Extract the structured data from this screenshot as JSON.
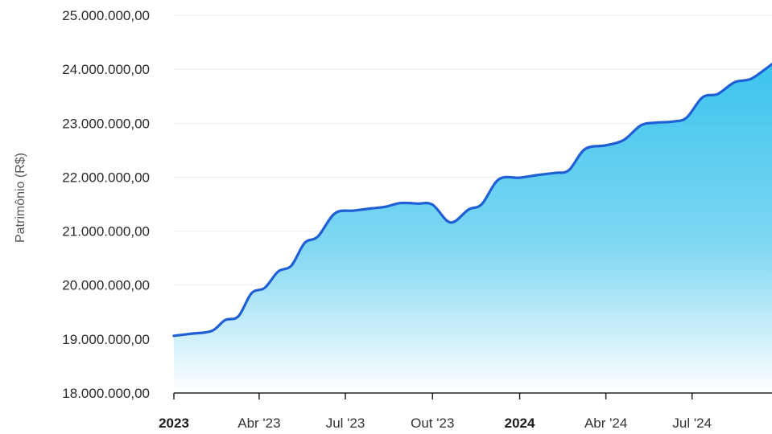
{
  "chart_data": {
    "type": "area",
    "title": "",
    "xlabel": "",
    "ylabel": "Patrimônio (R$)",
    "ylim": [
      18000000,
      25000000
    ],
    "y_ticks": [
      {
        "value": 18000000,
        "label": "18.000.000,00"
      },
      {
        "value": 19000000,
        "label": "19.000.000,00"
      },
      {
        "value": 20000000,
        "label": "20.000.000,00"
      },
      {
        "value": 21000000,
        "label": "21.000.000,00"
      },
      {
        "value": 22000000,
        "label": "22.000.000,00"
      },
      {
        "value": 23000000,
        "label": "23.000.000,00"
      },
      {
        "value": 24000000,
        "label": "24.000.000,00"
      },
      {
        "value": 25000000,
        "label": "25.000.000,00"
      }
    ],
    "xlim": [
      "2023-01-01",
      "2024-10-01"
    ],
    "x_ticks": [
      {
        "date": "2023-01-01",
        "label": "2023",
        "bold": true
      },
      {
        "date": "2023-04-01",
        "label": "Abr '23",
        "bold": false
      },
      {
        "date": "2023-07-01",
        "label": "Jul '23",
        "bold": false
      },
      {
        "date": "2023-10-01",
        "label": "Out '23",
        "bold": false
      },
      {
        "date": "2024-01-01",
        "label": "2024",
        "bold": true
      },
      {
        "date": "2024-04-01",
        "label": "Abr '24",
        "bold": false
      },
      {
        "date": "2024-07-01",
        "label": "Jul '24",
        "bold": false
      },
      {
        "date": "2024-10-01",
        "label": "",
        "bold": false
      }
    ],
    "grid": true,
    "series": [
      {
        "color": "#1f5fd6",
        "fill_top": "#3cc4ee",
        "fill_bottom": "#ffffff",
        "points": [
          {
            "x": "2023-01-01",
            "y": 19060000
          },
          {
            "x": "2023-01-20",
            "y": 19100000
          },
          {
            "x": "2023-02-10",
            "y": 19150000
          },
          {
            "x": "2023-02-24",
            "y": 19350000
          },
          {
            "x": "2023-03-10",
            "y": 19420000
          },
          {
            "x": "2023-03-24",
            "y": 19850000
          },
          {
            "x": "2023-04-07",
            "y": 19950000
          },
          {
            "x": "2023-04-21",
            "y": 20250000
          },
          {
            "x": "2023-05-05",
            "y": 20360000
          },
          {
            "x": "2023-05-19",
            "y": 20780000
          },
          {
            "x": "2023-06-02",
            "y": 20900000
          },
          {
            "x": "2023-06-20",
            "y": 21330000
          },
          {
            "x": "2023-07-10",
            "y": 21380000
          },
          {
            "x": "2023-07-28",
            "y": 21420000
          },
          {
            "x": "2023-08-12",
            "y": 21450000
          },
          {
            "x": "2023-08-28",
            "y": 21520000
          },
          {
            "x": "2023-09-15",
            "y": 21510000
          },
          {
            "x": "2023-10-01",
            "y": 21490000
          },
          {
            "x": "2023-10-20",
            "y": 21160000
          },
          {
            "x": "2023-11-08",
            "y": 21400000
          },
          {
            "x": "2023-11-22",
            "y": 21500000
          },
          {
            "x": "2023-12-10",
            "y": 21960000
          },
          {
            "x": "2024-01-01",
            "y": 21990000
          },
          {
            "x": "2024-01-20",
            "y": 22040000
          },
          {
            "x": "2024-02-08",
            "y": 22080000
          },
          {
            "x": "2024-02-22",
            "y": 22130000
          },
          {
            "x": "2024-03-10",
            "y": 22520000
          },
          {
            "x": "2024-04-01",
            "y": 22590000
          },
          {
            "x": "2024-04-20",
            "y": 22690000
          },
          {
            "x": "2024-05-08",
            "y": 22960000
          },
          {
            "x": "2024-05-24",
            "y": 23010000
          },
          {
            "x": "2024-06-10",
            "y": 23030000
          },
          {
            "x": "2024-06-25",
            "y": 23100000
          },
          {
            "x": "2024-07-12",
            "y": 23480000
          },
          {
            "x": "2024-07-28",
            "y": 23540000
          },
          {
            "x": "2024-08-15",
            "y": 23760000
          },
          {
            "x": "2024-09-01",
            "y": 23820000
          },
          {
            "x": "2024-09-20",
            "y": 24050000
          }
        ]
      }
    ]
  }
}
